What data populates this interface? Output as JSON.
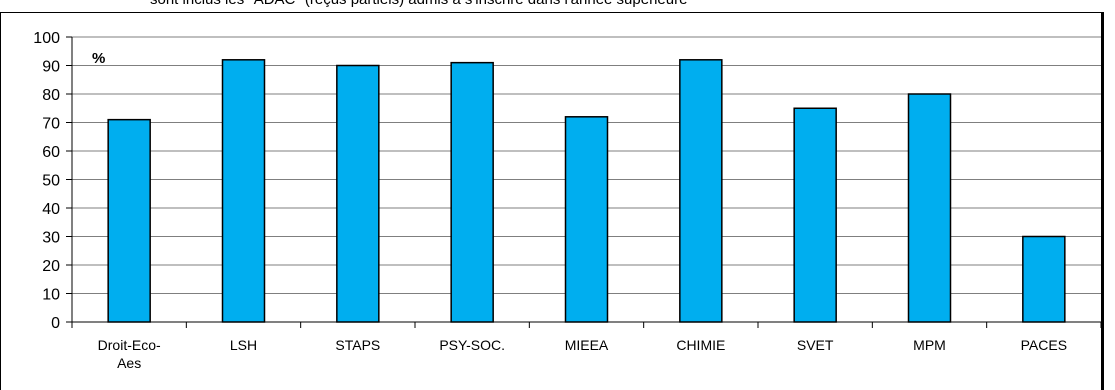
{
  "caption": "sont inclus les \"ADAC\" (reçus partiels) admis à s'inscrire dans l'année supérieure",
  "chart_data": {
    "type": "bar",
    "title": "",
    "xlabel": "",
    "ylabel": "",
    "unit_label": "%",
    "categories": [
      "Droit-Eco-\nAes",
      "LSH",
      "STAPS",
      "PSY-SOC.",
      "MIEEA",
      "CHIMIE",
      "SVET",
      "MPM",
      "PACES"
    ],
    "values": [
      71,
      92,
      90,
      91,
      72,
      92,
      75,
      80,
      30
    ],
    "ylim": [
      0,
      100
    ],
    "yticks": [
      0,
      10,
      20,
      30,
      40,
      50,
      60,
      70,
      80,
      90,
      100
    ],
    "grid": true,
    "legend": "none",
    "bar_color": "#00AEEF"
  }
}
